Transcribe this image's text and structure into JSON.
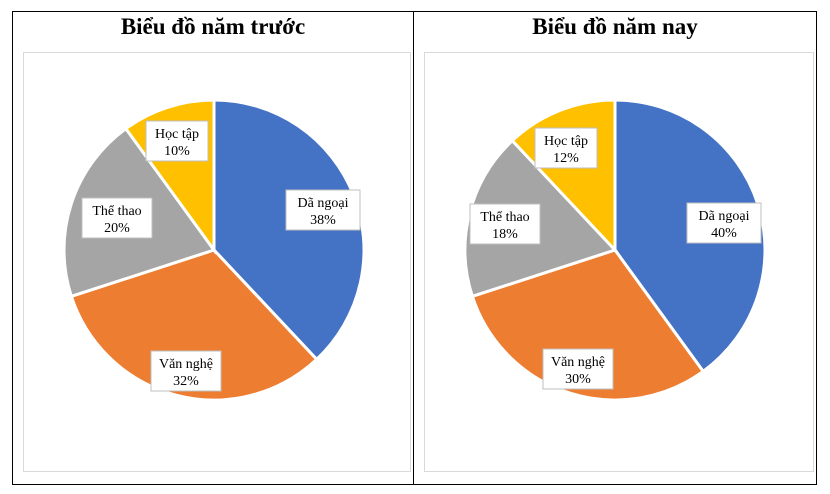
{
  "chart_data": [
    {
      "type": "pie",
      "title": "Biểu đồ năm trước",
      "slices": [
        {
          "label": "Dã ngoại",
          "value": 38,
          "value_text": "38%",
          "color": "#4472C4"
        },
        {
          "label": "Văn nghệ",
          "value": 32,
          "value_text": "32%",
          "color": "#ED7D31"
        },
        {
          "label": "Thể thao",
          "value": 20,
          "value_text": "20%",
          "color": "#A5A5A5"
        },
        {
          "label": "Học tập",
          "value": 10,
          "value_text": "10%",
          "color": "#FFC000"
        }
      ]
    },
    {
      "type": "pie",
      "title": "Biểu đồ năm nay",
      "slices": [
        {
          "label": "Dã ngoại",
          "value": 40,
          "value_text": "40%",
          "color": "#4472C4"
        },
        {
          "label": "Văn nghệ",
          "value": 30,
          "value_text": "30%",
          "color": "#ED7D31"
        },
        {
          "label": "Thể thao",
          "value": 18,
          "value_text": "18%",
          "color": "#A5A5A5"
        },
        {
          "label": "Học tập",
          "value": 12,
          "value_text": "12%",
          "color": "#FFC000"
        }
      ]
    }
  ]
}
